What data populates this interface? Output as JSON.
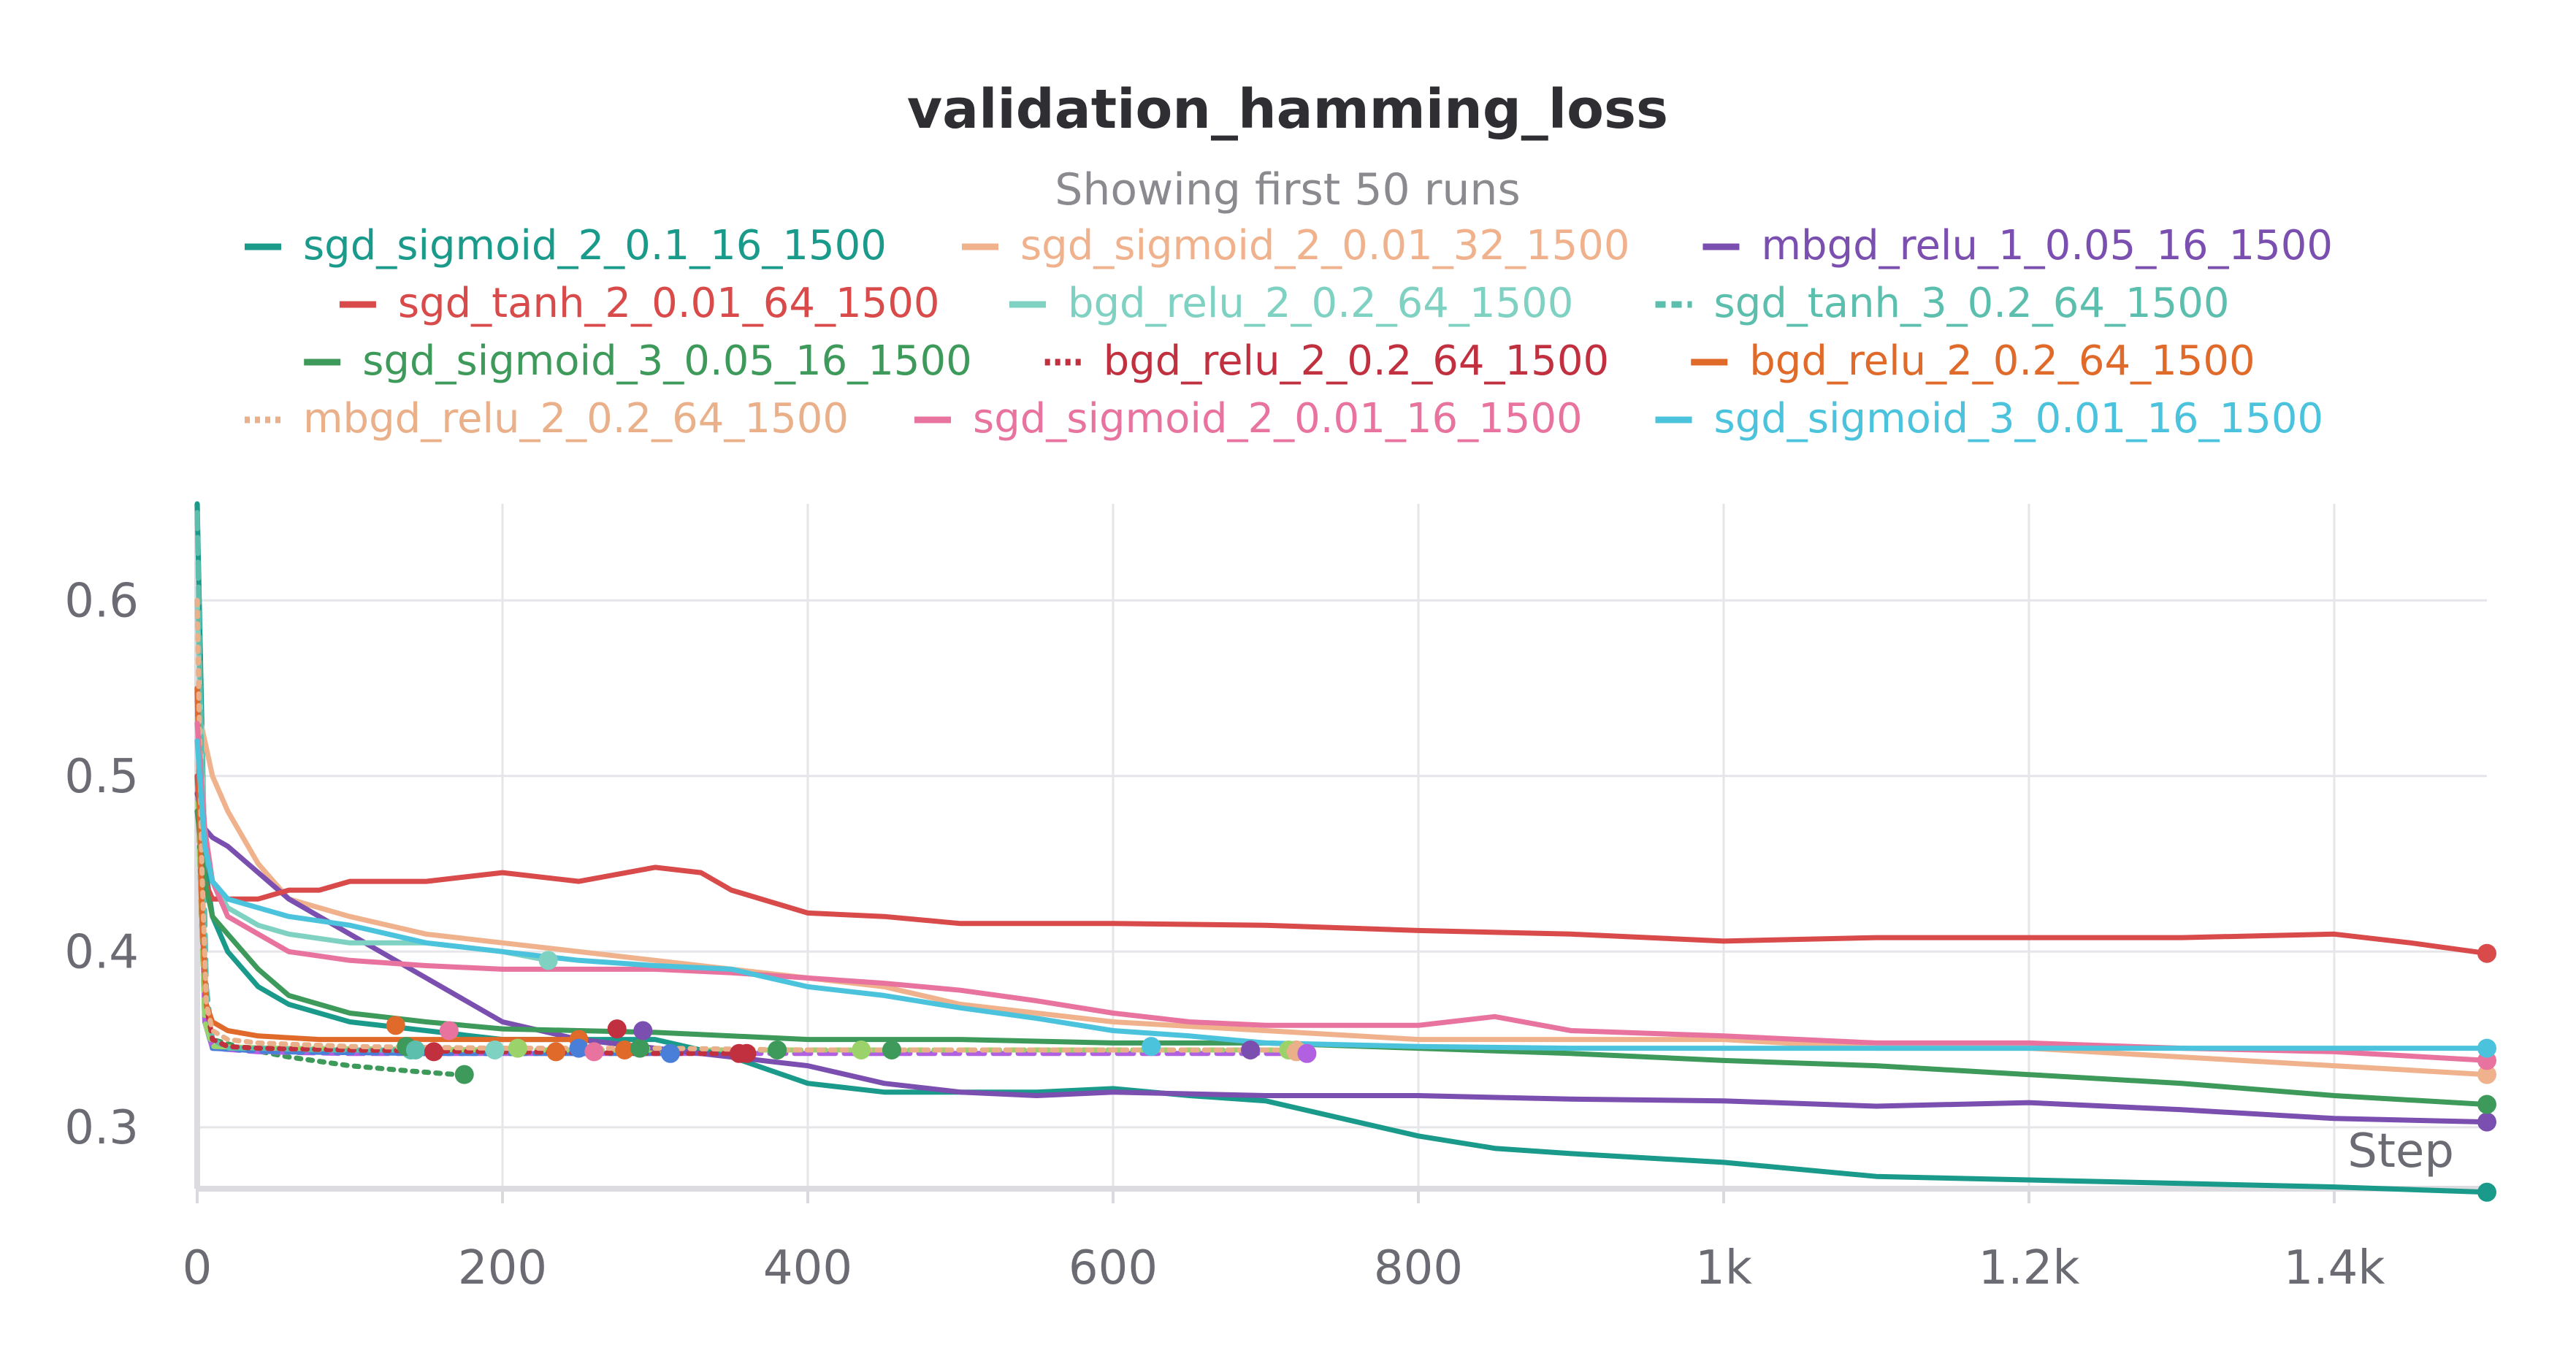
{
  "chart_data": {
    "type": "line",
    "title": "validation_hamming_loss",
    "subtitle": "Showing first 50 runs",
    "xlabel": "Step",
    "ylabel": "",
    "xlim": [
      0,
      1500
    ],
    "ylim": [
      0.265,
      0.655
    ],
    "x_ticks": [
      0,
      200,
      400,
      600,
      800,
      1000,
      1200,
      1400
    ],
    "x_tick_labels": [
      "0",
      "200",
      "400",
      "600",
      "800",
      "1k",
      "1.2k",
      "1.4k"
    ],
    "y_ticks": [
      0.3,
      0.4,
      0.5,
      0.6
    ],
    "y_tick_labels": [
      "0.3",
      "0.4",
      "0.5",
      "0.6"
    ],
    "grid": true,
    "legend_position": "top",
    "series": [
      {
        "name": "sgd_sigmoid_2_0.1_16_1500",
        "color": "#1a9a8a",
        "dash": "solid",
        "end_marker": true,
        "x": [
          0,
          5,
          10,
          20,
          40,
          60,
          100,
          150,
          200,
          250,
          300,
          350,
          400,
          450,
          500,
          550,
          600,
          650,
          700,
          750,
          800,
          850,
          900,
          1000,
          1100,
          1200,
          1300,
          1400,
          1500
        ],
        "y": [
          0.655,
          0.45,
          0.42,
          0.4,
          0.38,
          0.37,
          0.36,
          0.355,
          0.35,
          0.35,
          0.35,
          0.34,
          0.325,
          0.32,
          0.32,
          0.32,
          0.322,
          0.318,
          0.315,
          0.305,
          0.295,
          0.288,
          0.285,
          0.28,
          0.272,
          0.27,
          0.268,
          0.266,
          0.263
        ]
      },
      {
        "name": "sgd_sigmoid_2_0.01_32_1500",
        "color": "#f0b28c",
        "dash": "solid",
        "end_marker": true,
        "x": [
          0,
          5,
          10,
          20,
          40,
          60,
          100,
          150,
          200,
          250,
          300,
          350,
          400,
          450,
          500,
          600,
          700,
          800,
          900,
          1000,
          1100,
          1200,
          1300,
          1400,
          1500
        ],
        "y": [
          0.54,
          0.52,
          0.5,
          0.48,
          0.45,
          0.43,
          0.42,
          0.41,
          0.405,
          0.4,
          0.395,
          0.39,
          0.385,
          0.38,
          0.37,
          0.36,
          0.355,
          0.35,
          0.35,
          0.35,
          0.345,
          0.345,
          0.34,
          0.335,
          0.33
        ]
      },
      {
        "name": "mbgd_relu_1_0.05_16_1500",
        "color": "#7b4fb0",
        "dash": "solid",
        "end_marker": true,
        "x": [
          0,
          5,
          10,
          20,
          40,
          60,
          100,
          150,
          200,
          250,
          300,
          350,
          400,
          450,
          500,
          550,
          600,
          700,
          800,
          900,
          1000,
          1100,
          1200,
          1300,
          1400,
          1500
        ],
        "y": [
          0.49,
          0.47,
          0.465,
          0.46,
          0.445,
          0.43,
          0.41,
          0.385,
          0.36,
          0.35,
          0.345,
          0.34,
          0.335,
          0.325,
          0.32,
          0.318,
          0.32,
          0.318,
          0.318,
          0.316,
          0.315,
          0.312,
          0.314,
          0.31,
          0.305,
          0.303
        ]
      },
      {
        "name": "sgd_tanh_2_0.01_64_1500",
        "color": "#d94a4a",
        "dash": "solid",
        "end_marker": true,
        "x": [
          0,
          5,
          10,
          20,
          40,
          60,
          80,
          100,
          150,
          200,
          250,
          300,
          330,
          350,
          400,
          450,
          500,
          600,
          700,
          800,
          900,
          1000,
          1100,
          1200,
          1300,
          1400,
          1450,
          1500
        ],
        "y": [
          0.5,
          0.44,
          0.43,
          0.43,
          0.43,
          0.435,
          0.435,
          0.44,
          0.44,
          0.445,
          0.44,
          0.448,
          0.445,
          0.435,
          0.422,
          0.42,
          0.416,
          0.416,
          0.415,
          0.412,
          0.41,
          0.406,
          0.408,
          0.408,
          0.408,
          0.41,
          0.405,
          0.399
        ]
      },
      {
        "name": "bgd_relu_2_0.2_64_1500",
        "color": "#7fd1c2",
        "dash": "solid",
        "end_marker": true,
        "x": [
          0,
          5,
          10,
          20,
          40,
          60,
          100,
          150,
          200,
          230
        ],
        "y": [
          0.6,
          0.46,
          0.44,
          0.425,
          0.415,
          0.41,
          0.405,
          0.405,
          0.4,
          0.395
        ]
      },
      {
        "name": "sgd_tanh_3_0.2_64_1500",
        "color": "#5cbfae",
        "dash": "dashed",
        "end_marker": true,
        "x": [
          0,
          3,
          6,
          10,
          20,
          40,
          80,
          140
        ],
        "y": [
          0.65,
          0.5,
          0.38,
          0.35,
          0.345,
          0.345,
          0.344,
          0.344
        ]
      },
      {
        "name": "sgd_sigmoid_3_0.05_16_1500",
        "color": "#3e9a5a",
        "dash": "solid",
        "end_marker": true,
        "x": [
          0,
          5,
          10,
          20,
          40,
          60,
          100,
          150,
          200,
          250,
          300,
          400,
          500,
          600,
          700,
          800,
          900,
          1000,
          1100,
          1200,
          1300,
          1400,
          1500
        ],
        "y": [
          0.48,
          0.44,
          0.42,
          0.41,
          0.39,
          0.375,
          0.365,
          0.36,
          0.356,
          0.355,
          0.354,
          0.35,
          0.35,
          0.348,
          0.348,
          0.345,
          0.342,
          0.338,
          0.335,
          0.33,
          0.325,
          0.318,
          0.313
        ]
      },
      {
        "name": "bgd_relu_2_0.2_64_1500",
        "color": "#c0303f",
        "dash": "dotted",
        "end_marker": true,
        "x": [
          0,
          3,
          6,
          10,
          20,
          40,
          100,
          200,
          300,
          360
        ],
        "y": [
          0.55,
          0.42,
          0.37,
          0.35,
          0.346,
          0.345,
          0.344,
          0.343,
          0.342,
          0.342
        ]
      },
      {
        "name": "bgd_relu_2_0.2_64_1500",
        "color": "#e06a2a",
        "dash": "solid",
        "end_marker": true,
        "x": [
          0,
          3,
          6,
          10,
          20,
          40,
          80,
          140,
          200,
          250
        ],
        "y": [
          0.55,
          0.42,
          0.37,
          0.36,
          0.355,
          0.352,
          0.35,
          0.35,
          0.35,
          0.35
        ]
      },
      {
        "name": "mbgd_relu_2_0.2_64_1500",
        "color": "#eab08a",
        "dash": "dotted",
        "end_marker": true,
        "x": [
          0,
          3,
          6,
          10,
          20,
          40,
          100,
          200,
          300,
          400,
          500,
          600,
          700,
          720
        ],
        "y": [
          0.6,
          0.45,
          0.37,
          0.355,
          0.35,
          0.348,
          0.346,
          0.345,
          0.345,
          0.344,
          0.344,
          0.344,
          0.344,
          0.344
        ]
      },
      {
        "name": "sgd_sigmoid_2_0.01_16_1500",
        "color": "#e8739e",
        "dash": "solid",
        "end_marker": true,
        "x": [
          0,
          5,
          10,
          20,
          40,
          60,
          100,
          150,
          200,
          250,
          300,
          350,
          400,
          450,
          500,
          550,
          600,
          650,
          700,
          800,
          850,
          900,
          1000,
          1100,
          1200,
          1300,
          1400,
          1500
        ],
        "y": [
          0.53,
          0.47,
          0.44,
          0.42,
          0.41,
          0.4,
          0.395,
          0.392,
          0.39,
          0.39,
          0.39,
          0.388,
          0.385,
          0.382,
          0.378,
          0.372,
          0.365,
          0.36,
          0.358,
          0.358,
          0.363,
          0.355,
          0.352,
          0.348,
          0.348,
          0.345,
          0.343,
          0.338
        ]
      },
      {
        "name": "sgd_sigmoid_3_0.01_16_1500",
        "color": "#4cc3dc",
        "dash": "solid",
        "end_marker": true,
        "x": [
          0,
          5,
          10,
          20,
          40,
          60,
          100,
          150,
          200,
          250,
          300,
          350,
          400,
          450,
          500,
          550,
          600,
          650,
          700,
          800,
          900,
          1000,
          1100,
          1200,
          1300,
          1400,
          1500
        ],
        "y": [
          0.52,
          0.46,
          0.44,
          0.43,
          0.425,
          0.42,
          0.415,
          0.405,
          0.4,
          0.395,
          0.392,
          0.39,
          0.38,
          0.375,
          0.368,
          0.362,
          0.355,
          0.352,
          0.348,
          0.346,
          0.345,
          0.345,
          0.345,
          0.345,
          0.345,
          0.345,
          0.345
        ]
      }
    ],
    "extra_lines": [
      {
        "color": "#3e9a5a",
        "dash": "dotted",
        "x": [
          0,
          5,
          10,
          30,
          60,
          100,
          140,
          170
        ],
        "y": [
          0.5,
          0.37,
          0.35,
          0.345,
          0.34,
          0.335,
          0.332,
          0.33
        ]
      },
      {
        "color": "#b060e0",
        "dash": "dashed",
        "x": [
          0,
          5,
          10,
          40,
          100,
          200,
          300,
          400,
          500,
          600,
          700,
          730
        ],
        "y": [
          0.55,
          0.36,
          0.345,
          0.343,
          0.342,
          0.342,
          0.342,
          0.342,
          0.342,
          0.342,
          0.342,
          0.342
        ]
      },
      {
        "color": "#4a7fd9",
        "dash": "dashed",
        "x": [
          0,
          5,
          10,
          50,
          150,
          250,
          310
        ],
        "y": [
          0.5,
          0.36,
          0.345,
          0.343,
          0.342,
          0.342,
          0.342
        ]
      },
      {
        "color": "#9bd36a",
        "dash": "dashed",
        "x": [
          0,
          5,
          10,
          50,
          200,
          400,
          600,
          715
        ],
        "y": [
          0.5,
          0.36,
          0.346,
          0.345,
          0.344,
          0.344,
          0.344,
          0.344
        ]
      }
    ],
    "extra_markers": [
      {
        "x": 130,
        "y": 0.358,
        "color": "#e06a2a"
      },
      {
        "x": 137,
        "y": 0.346,
        "color": "#3e9a5a"
      },
      {
        "x": 143,
        "y": 0.344,
        "color": "#5cbfae"
      },
      {
        "x": 155,
        "y": 0.343,
        "color": "#c0303f"
      },
      {
        "x": 165,
        "y": 0.355,
        "color": "#e8739e"
      },
      {
        "x": 175,
        "y": 0.33,
        "color": "#3e9a5a"
      },
      {
        "x": 195,
        "y": 0.344,
        "color": "#7fd1c2"
      },
      {
        "x": 210,
        "y": 0.345,
        "color": "#9bd36a"
      },
      {
        "x": 235,
        "y": 0.343,
        "color": "#e06a2a"
      },
      {
        "x": 250,
        "y": 0.345,
        "color": "#4a7fd9"
      },
      {
        "x": 260,
        "y": 0.343,
        "color": "#e8739e"
      },
      {
        "x": 275,
        "y": 0.356,
        "color": "#c0303f"
      },
      {
        "x": 280,
        "y": 0.344,
        "color": "#e06a2a"
      },
      {
        "x": 290,
        "y": 0.345,
        "color": "#3e9a5a"
      },
      {
        "x": 292,
        "y": 0.355,
        "color": "#7b4fb0"
      },
      {
        "x": 310,
        "y": 0.342,
        "color": "#4a7fd9"
      },
      {
        "x": 355,
        "y": 0.342,
        "color": "#c0303f"
      },
      {
        "x": 380,
        "y": 0.344,
        "color": "#3e9a5a"
      },
      {
        "x": 435,
        "y": 0.344,
        "color": "#9bd36a"
      },
      {
        "x": 455,
        "y": 0.344,
        "color": "#3e9a5a"
      },
      {
        "x": 625,
        "y": 0.346,
        "color": "#4cc3dc"
      },
      {
        "x": 690,
        "y": 0.344,
        "color": "#7b4fb0"
      },
      {
        "x": 715,
        "y": 0.344,
        "color": "#9bd36a"
      },
      {
        "x": 720,
        "y": 0.343,
        "color": "#eab08a"
      },
      {
        "x": 727,
        "y": 0.342,
        "color": "#b060e0"
      }
    ]
  }
}
